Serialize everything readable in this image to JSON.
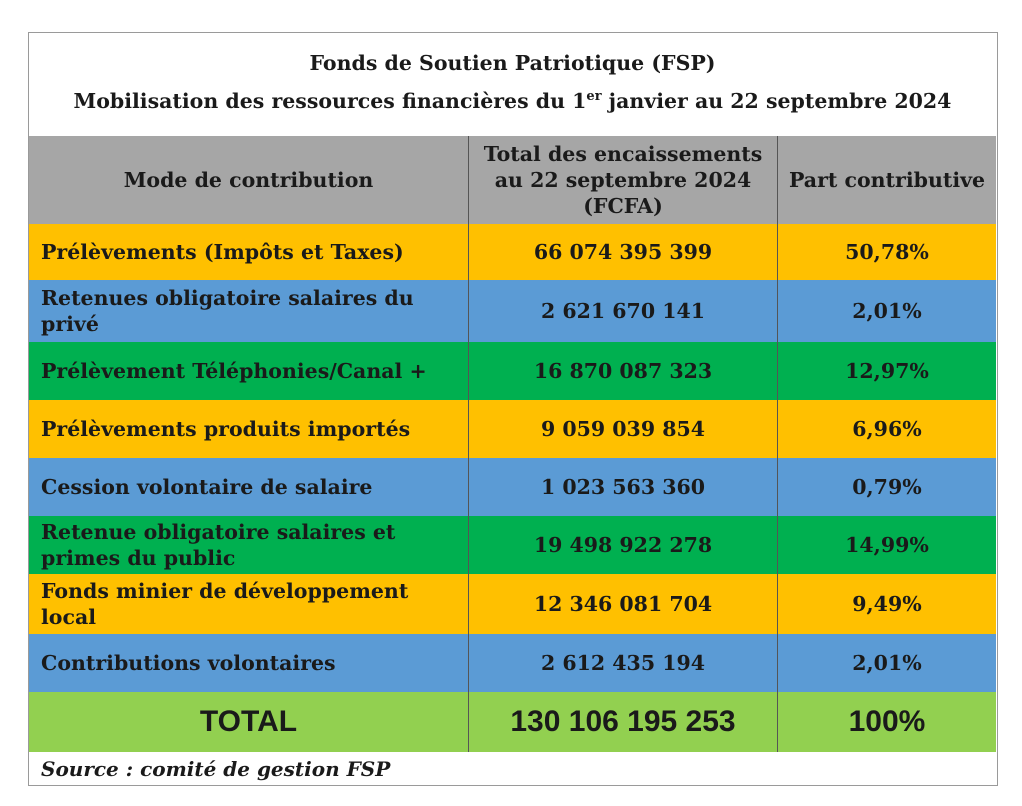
{
  "title": {
    "line1": "Fonds de Soutien Patriotique (FSP)",
    "line2_prefix": "Mobilisation des ressources financières du 1",
    "line2_sup": "er",
    "line2_suffix": " janvier au 22 septembre 2024"
  },
  "table": {
    "headers": [
      "Mode de contribution",
      "Total des encaissements au 22 septembre 2024 (FCFA)",
      "Part contributive"
    ],
    "rows": [
      {
        "mode": "Prélèvements (Impôts et Taxes)",
        "total": "66 074 395 399",
        "part": "50,78%",
        "color": "#ffc000"
      },
      {
        "mode": "Retenues obligatoire salaires du privé",
        "total": "2 621 670 141",
        "part": "2,01%",
        "color": "#5b9bd5"
      },
      {
        "mode": "Prélèvement Téléphonies/Canal +",
        "total": "16 870 087 323",
        "part": "12,97%",
        "color": "#00b050"
      },
      {
        "mode": "Prélèvements produits importés",
        "total": "9 059 039 854",
        "part": "6,96%",
        "color": "#ffc000"
      },
      {
        "mode": "Cession volontaire de salaire",
        "total": "1 023 563 360",
        "part": "0,79%",
        "color": "#5b9bd5"
      },
      {
        "mode": "Retenue obligatoire salaires et primes du public",
        "total": "19 498 922 278",
        "part": "14,99%",
        "color": "#00b050"
      },
      {
        "mode": "Fonds minier de développement local",
        "total": "12 346 081 704",
        "part": "9,49%",
        "color": "#ffc000"
      },
      {
        "mode": "Contributions volontaires",
        "total": "2 612 435 194",
        "part": "2,01%",
        "color": "#5b9bd5"
      }
    ],
    "total_row": {
      "label": "TOTAL",
      "total": "130 106 195 253",
      "part": "100%",
      "color": "#92d050"
    },
    "header_color": "#a6a6a6"
  },
  "source": "Source : comité de gestion FSP"
}
